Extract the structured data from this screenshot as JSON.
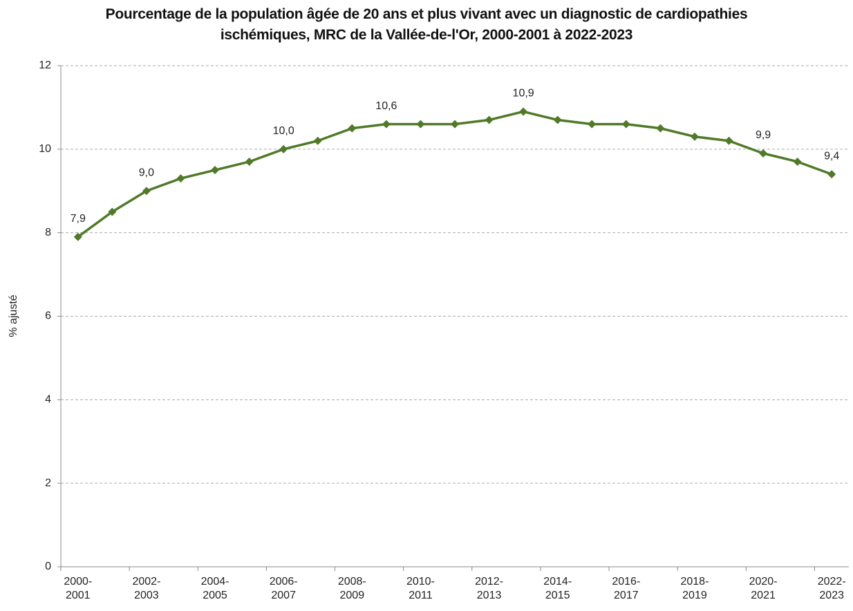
{
  "chart_data": {
    "type": "line",
    "title": "Pourcentage de la population âgée de 20 ans et plus vivant avec un diagnostic de cardiopathies ischémiques, MRC de la Vallée-de-l'Or, 2000-2001 à 2022-2023",
    "y_label": "% ajusté",
    "categories": [
      "2000-2001",
      null,
      "2002-2003",
      null,
      "2004-2005",
      null,
      "2006-2007",
      null,
      "2008-2009",
      null,
      "2010-2011",
      null,
      "2012-2013",
      null,
      "2014-2015",
      null,
      "2016-2017",
      null,
      "2018-2019",
      null,
      "2020-2021",
      null,
      "2022-2023"
    ],
    "values": [
      7.9,
      8.5,
      9.0,
      9.3,
      9.5,
      9.7,
      10.0,
      10.2,
      10.5,
      10.6,
      10.6,
      10.6,
      10.7,
      10.9,
      10.7,
      10.6,
      10.6,
      10.5,
      10.3,
      10.2,
      9.9,
      9.7,
      9.4
    ],
    "value_labels": [
      "7,9",
      null,
      "9,0",
      null,
      null,
      null,
      "10,0",
      null,
      null,
      "10,6",
      null,
      null,
      null,
      "10,9",
      null,
      null,
      null,
      null,
      null,
      null,
      "9,9",
      null,
      "9,4"
    ],
    "color": "#4f7a28",
    "ylim": [
      0,
      12
    ],
    "yticks": [
      0,
      2,
      4,
      6,
      8,
      10,
      12
    ],
    "grid": true
  }
}
